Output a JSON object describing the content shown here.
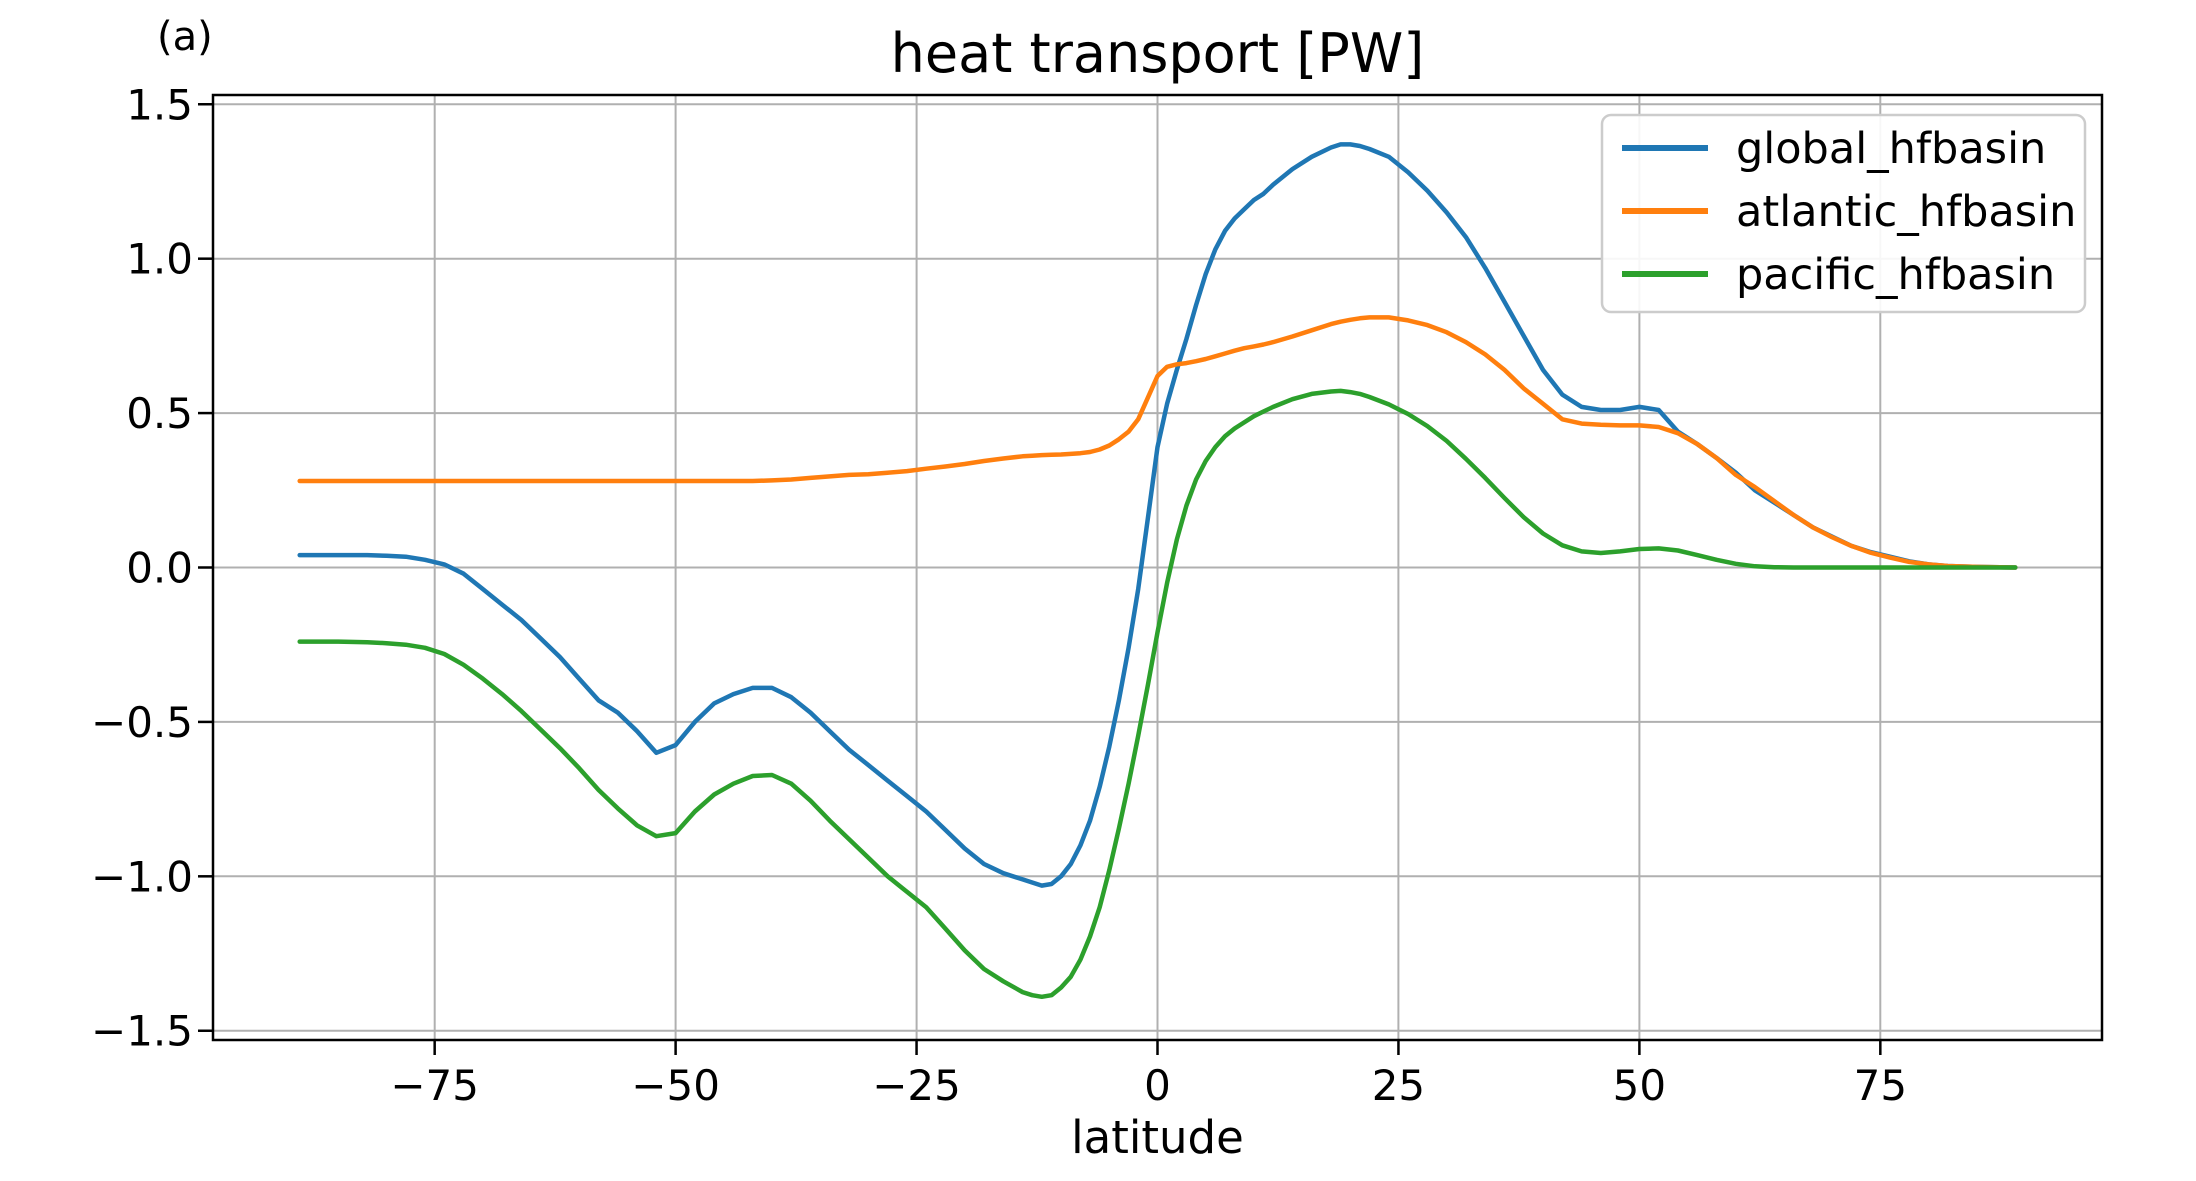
{
  "figure": {
    "panel_label": "(a)",
    "background": "#ffffff"
  },
  "chart_data": {
    "type": "line",
    "title": "heat transport [PW]",
    "xlabel": "latitude",
    "ylabel": "",
    "xlim": [
      -98,
      98
    ],
    "ylim": [
      -1.53,
      1.53
    ],
    "grid": true,
    "legend_position": "upper right",
    "x_ticks": [
      {
        "value": -75,
        "label": "−75"
      },
      {
        "value": -50,
        "label": "−50"
      },
      {
        "value": -25,
        "label": "−25"
      },
      {
        "value": 0,
        "label": "0"
      },
      {
        "value": 25,
        "label": "25"
      },
      {
        "value": 50,
        "label": "50"
      },
      {
        "value": 75,
        "label": "75"
      }
    ],
    "y_ticks": [
      {
        "value": 1.5,
        "label": "1.5"
      },
      {
        "value": 1.0,
        "label": "1.0"
      },
      {
        "value": 0.5,
        "label": "0.5"
      },
      {
        "value": 0.0,
        "label": "0.0"
      },
      {
        "value": -0.5,
        "label": "−0.5"
      },
      {
        "value": -1.0,
        "label": "−1.0"
      },
      {
        "value": -1.5,
        "label": "−1.5"
      }
    ],
    "x": [
      -89,
      -87,
      -85,
      -82,
      -80,
      -78,
      -76,
      -74,
      -72,
      -70,
      -68,
      -66,
      -64,
      -62,
      -60,
      -58,
      -56,
      -54,
      -52,
      -50,
      -48,
      -46,
      -44,
      -42,
      -40,
      -38,
      -36,
      -34,
      -32,
      -30,
      -28,
      -26,
      -24,
      -22,
      -20,
      -18,
      -16,
      -14,
      -13,
      -12,
      -11,
      -10,
      -9,
      -8,
      -7,
      -6,
      -5,
      -4,
      -3,
      -2,
      -1,
      0,
      1,
      2,
      3,
      4,
      5,
      6,
      7,
      8,
      9,
      10,
      11,
      12,
      14,
      16,
      18,
      19,
      20,
      21,
      22,
      24,
      26,
      28,
      30,
      32,
      34,
      36,
      38,
      40,
      42,
      44,
      46,
      48,
      50,
      52,
      54,
      56,
      58,
      60,
      62,
      64,
      66,
      68,
      70,
      72,
      74,
      76,
      78,
      80,
      82,
      85,
      89
    ],
    "series": [
      {
        "name": "global_hfbasin",
        "color": "#1f77b4",
        "values": [
          0.04,
          0.04,
          0.04,
          0.04,
          0.038,
          0.035,
          0.025,
          0.01,
          -0.02,
          -0.07,
          -0.12,
          -0.17,
          -0.23,
          -0.29,
          -0.36,
          -0.43,
          -0.47,
          -0.53,
          -0.6,
          -0.575,
          -0.5,
          -0.44,
          -0.41,
          -0.39,
          -0.39,
          -0.42,
          -0.47,
          -0.53,
          -0.59,
          -0.64,
          -0.69,
          -0.74,
          -0.79,
          -0.85,
          -0.91,
          -0.96,
          -0.99,
          -1.01,
          -1.02,
          -1.03,
          -1.025,
          -1.0,
          -0.96,
          -0.9,
          -0.82,
          -0.71,
          -0.58,
          -0.43,
          -0.26,
          -0.07,
          0.16,
          0.39,
          0.53,
          0.64,
          0.74,
          0.85,
          0.95,
          1.03,
          1.09,
          1.13,
          1.16,
          1.19,
          1.21,
          1.24,
          1.29,
          1.33,
          1.36,
          1.37,
          1.37,
          1.365,
          1.355,
          1.33,
          1.28,
          1.22,
          1.15,
          1.07,
          0.97,
          0.86,
          0.75,
          0.64,
          0.56,
          0.52,
          0.51,
          0.51,
          0.52,
          0.51,
          0.44,
          0.4,
          0.355,
          0.307,
          0.25,
          0.21,
          0.17,
          0.13,
          0.1,
          0.07,
          0.05,
          0.035,
          0.02,
          0.01,
          0.005,
          0.002,
          0.0
        ]
      },
      {
        "name": "atlantic_hfbasin",
        "color": "#ff7f0e",
        "values": [
          0.28,
          0.28,
          0.28,
          0.28,
          0.28,
          0.28,
          0.28,
          0.28,
          0.28,
          0.28,
          0.28,
          0.28,
          0.28,
          0.28,
          0.28,
          0.28,
          0.28,
          0.28,
          0.28,
          0.28,
          0.28,
          0.28,
          0.28,
          0.28,
          0.282,
          0.285,
          0.29,
          0.295,
          0.3,
          0.302,
          0.307,
          0.312,
          0.32,
          0.327,
          0.335,
          0.345,
          0.353,
          0.36,
          0.362,
          0.364,
          0.365,
          0.366,
          0.368,
          0.37,
          0.374,
          0.382,
          0.395,
          0.415,
          0.44,
          0.48,
          0.55,
          0.62,
          0.65,
          0.658,
          0.662,
          0.668,
          0.675,
          0.684,
          0.693,
          0.702,
          0.71,
          0.716,
          0.722,
          0.73,
          0.748,
          0.768,
          0.788,
          0.796,
          0.802,
          0.807,
          0.81,
          0.81,
          0.8,
          0.785,
          0.762,
          0.73,
          0.69,
          0.64,
          0.58,
          0.53,
          0.48,
          0.466,
          0.462,
          0.46,
          0.46,
          0.455,
          0.435,
          0.4,
          0.355,
          0.3,
          0.26,
          0.215,
          0.17,
          0.13,
          0.098,
          0.07,
          0.048,
          0.032,
          0.018,
          0.01,
          0.005,
          0.002,
          0.0
        ]
      },
      {
        "name": "pacific_hfbasin",
        "color": "#2ca02c",
        "values": [
          -0.24,
          -0.24,
          -0.24,
          -0.242,
          -0.245,
          -0.25,
          -0.26,
          -0.28,
          -0.315,
          -0.36,
          -0.41,
          -0.465,
          -0.525,
          -0.585,
          -0.65,
          -0.72,
          -0.78,
          -0.835,
          -0.87,
          -0.86,
          -0.79,
          -0.735,
          -0.7,
          -0.675,
          -0.672,
          -0.7,
          -0.755,
          -0.82,
          -0.88,
          -0.94,
          -1.0,
          -1.05,
          -1.1,
          -1.17,
          -1.24,
          -1.3,
          -1.34,
          -1.375,
          -1.385,
          -1.39,
          -1.385,
          -1.36,
          -1.325,
          -1.27,
          -1.195,
          -1.1,
          -0.98,
          -0.845,
          -0.7,
          -0.545,
          -0.38,
          -0.21,
          -0.05,
          0.09,
          0.2,
          0.285,
          0.345,
          0.39,
          0.425,
          0.45,
          0.47,
          0.49,
          0.505,
          0.52,
          0.545,
          0.562,
          0.57,
          0.572,
          0.568,
          0.562,
          0.552,
          0.528,
          0.497,
          0.458,
          0.41,
          0.352,
          0.29,
          0.225,
          0.163,
          0.11,
          0.072,
          0.052,
          0.047,
          0.052,
          0.06,
          0.062,
          0.055,
          0.04,
          0.025,
          0.012,
          0.004,
          0.001,
          0.0,
          0.0,
          0.0,
          0.0,
          0.0,
          0.0,
          0.0,
          0.0,
          0.0,
          0.0,
          0.0
        ]
      }
    ]
  },
  "style_colors": {
    "grid": "#b0b0b0",
    "spine": "#000000",
    "legend_border": "#cccccc",
    "legend_fill": "#ffffff"
  }
}
